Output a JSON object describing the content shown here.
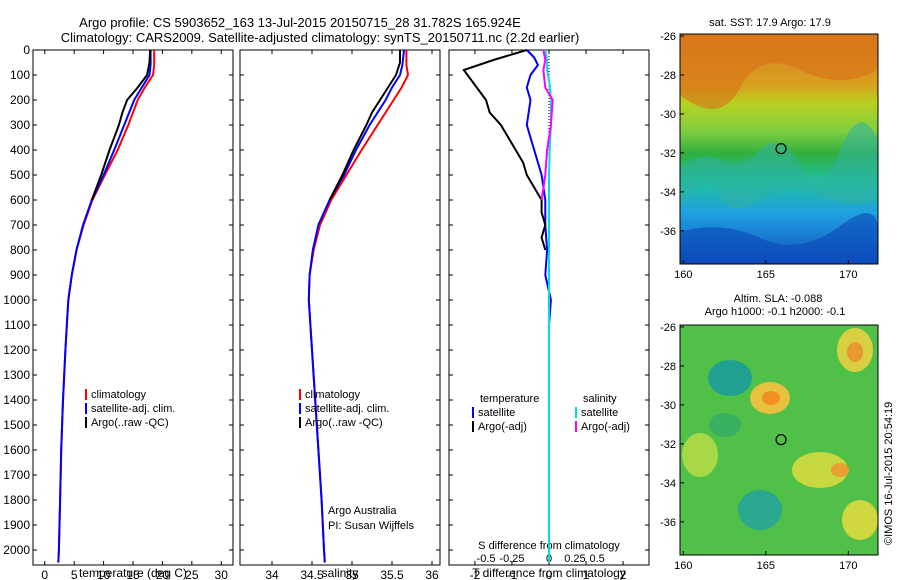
{
  "header": {
    "line1": "Argo profile: CS 5903652_163 13-Jul-2015 20150715_28 31.782S 165.924E",
    "line2": "Climatology: CARS2009. Satellite-adjusted climatology: synTS_20150711.nc (2.2d earlier)"
  },
  "colors": {
    "climatology": "#ff0000",
    "satellite": "#0000ff",
    "argo": "#000000",
    "sat_cyan": "#00e0e0",
    "argo_magenta": "#ff00ff"
  },
  "depth_axis": {
    "ticks": [
      "0",
      "100",
      "200",
      "300",
      "400",
      "500",
      "600",
      "700",
      "800",
      "900",
      "1000",
      "1100",
      "1200",
      "1300",
      "1400",
      "1500",
      "1600",
      "1700",
      "1800",
      "1900",
      "2000"
    ],
    "range": [
      0,
      2060
    ]
  },
  "chart_data": [
    {
      "type": "line",
      "name": "temperature-profile",
      "xlabel": "temperature (deg C)",
      "ylabel": "depth",
      "xlim": [
        -2,
        32
      ],
      "ylim": [
        2060,
        0
      ],
      "xticks": [
        "0",
        "5",
        "10",
        "15",
        "20",
        "25",
        "30"
      ],
      "legend": [
        "climatology",
        "satellite-adj. clim.",
        "Argo(..raw -QC)"
      ],
      "series": [
        {
          "name": "climatology",
          "color": "#ff0000",
          "depth": [
            0,
            60,
            100,
            150,
            200,
            300,
            400,
            500,
            600,
            700,
            800,
            900,
            1000,
            1200,
            1400,
            1600,
            1800,
            2000,
            2050
          ],
          "values": [
            18.6,
            18.6,
            18.4,
            17.0,
            15.8,
            14.2,
            12.4,
            10.2,
            8.1,
            6.6,
            5.4,
            4.6,
            4.0,
            3.5,
            3.1,
            2.8,
            2.6,
            2.4,
            2.3
          ]
        },
        {
          "name": "satellite-adj. clim.",
          "color": "#0000ff",
          "depth": [
            0,
            60,
            100,
            150,
            200,
            300,
            400,
            500,
            600,
            700,
            800,
            900,
            1000,
            1200,
            1400,
            1600,
            1800,
            2000,
            2050
          ],
          "values": [
            18.0,
            18.0,
            17.8,
            16.5,
            15.2,
            13.5,
            11.8,
            10.0,
            8.0,
            6.5,
            5.4,
            4.6,
            4.0,
            3.5,
            3.1,
            2.8,
            2.6,
            2.4,
            2.3
          ]
        },
        {
          "name": "Argo(..raw -QC)",
          "color": "#000000",
          "depth": [
            0,
            50,
            100,
            150,
            200,
            250,
            300,
            400,
            500,
            600
          ],
          "values": [
            17.9,
            17.8,
            17.4,
            15.8,
            14.0,
            13.2,
            12.6,
            11.0,
            9.6,
            8.0
          ]
        }
      ]
    },
    {
      "type": "line",
      "name": "salinity-profile",
      "xlabel": "salinity",
      "ylabel": "depth",
      "xlim": [
        33.6,
        36.1
      ],
      "ylim": [
        2060,
        0
      ],
      "xticks": [
        "34",
        "34.5",
        "35",
        "35.5",
        "36"
      ],
      "legend": [
        "climatology",
        "satellite-adj. clim.",
        "Argo(..raw -QC)"
      ],
      "annotations": [
        "Argo Australia",
        "PI: Susan Wijffels"
      ],
      "series": [
        {
          "name": "climatology",
          "color": "#ff0000",
          "depth": [
            0,
            60,
            100,
            150,
            200,
            300,
            400,
            500,
            600,
            700,
            800,
            900,
            1000,
            1200,
            1400,
            1600,
            1800,
            2000,
            2050
          ],
          "values": [
            35.68,
            35.68,
            35.7,
            35.62,
            35.52,
            35.32,
            35.12,
            34.93,
            34.74,
            34.6,
            34.52,
            34.47,
            34.46,
            34.5,
            34.54,
            34.58,
            34.62,
            34.65,
            34.66
          ]
        },
        {
          "name": "satellite-adj. clim.",
          "color": "#0000ff",
          "depth": [
            0,
            60,
            100,
            150,
            200,
            300,
            400,
            500,
            600,
            700,
            800,
            900,
            1000,
            1200,
            1400,
            1600,
            1800,
            2000,
            2050
          ],
          "values": [
            35.65,
            35.63,
            35.6,
            35.5,
            35.42,
            35.22,
            35.05,
            34.9,
            34.72,
            34.58,
            34.51,
            34.47,
            34.46,
            34.5,
            34.54,
            34.58,
            34.62,
            34.65,
            34.66
          ]
        },
        {
          "name": "Argo(..raw -QC)",
          "color": "#000000",
          "depth": [
            0,
            50,
            100,
            150,
            200,
            250,
            300,
            400,
            500,
            600
          ],
          "values": [
            35.6,
            35.6,
            35.55,
            35.45,
            35.35,
            35.25,
            35.18,
            35.02,
            34.88,
            34.72
          ]
        }
      ]
    },
    {
      "type": "line",
      "name": "difference-profile",
      "xlabel": "T difference from climatology",
      "xlabel2": "S difference from climatology",
      "ylabel": "depth",
      "xlim": [
        -2.7,
        2.7
      ],
      "ylim": [
        2060,
        0
      ],
      "xticks": [
        "-2",
        "-1",
        "0",
        "1",
        "2"
      ],
      "sticks": [
        "-0.5",
        "-0.25",
        "0",
        "0.25",
        "0.5"
      ],
      "legend_temperature_title": "temperature",
      "legend_salinity_title": "salinity",
      "legend": [
        "satellite",
        "Argo(-adj)",
        "satellite",
        "Argo(-adj)"
      ],
      "series": [
        {
          "name": "T satellite",
          "color": "#0000ff",
          "depth": [
            0,
            30,
            60,
            100,
            150,
            200,
            300,
            400,
            500,
            600,
            700,
            800,
            900,
            1000,
            1100,
            1200,
            1400,
            1600,
            1800,
            2000,
            2050
          ],
          "values": [
            -0.6,
            -0.4,
            -0.3,
            -0.5,
            -0.6,
            -0.5,
            -0.6,
            -0.4,
            -0.2,
            -0.1,
            -0.1,
            -0.05,
            -0.1,
            0.05,
            0.0,
            0.0,
            0.0,
            0.0,
            0.0,
            0.0,
            0.0
          ]
        },
        {
          "name": "T Argo(-adj)",
          "color": "#000000",
          "depth": [
            0,
            40,
            80,
            120,
            160,
            200,
            250,
            300,
            350,
            400,
            450,
            500,
            550,
            600,
            650,
            700,
            750,
            800
          ],
          "values": [
            -0.6,
            -1.5,
            -2.3,
            -2.1,
            -1.9,
            -1.7,
            -1.6,
            -1.3,
            -1.1,
            -0.9,
            -0.7,
            -0.6,
            -0.4,
            -0.2,
            -0.2,
            -0.1,
            -0.2,
            -0.1
          ]
        },
        {
          "name": "S satellite",
          "color": "#00e0e0",
          "depth": [
            0,
            40,
            80,
            150,
            200,
            300,
            400,
            500,
            700,
            1000,
            1500,
            2000,
            2050
          ],
          "values": [
            -0.1,
            -0.05,
            -0.05,
            0.03,
            0.05,
            0.05,
            0.02,
            0.0,
            0.0,
            0.0,
            0.0,
            0.0,
            0.0
          ]
        },
        {
          "name": "S Argo(-adj)",
          "color": "#ff00ff",
          "depth": [
            0,
            40,
            80,
            150,
            200,
            300,
            400,
            500,
            600
          ],
          "values": [
            -0.15,
            -0.1,
            -0.15,
            -0.1,
            0.1,
            0.05,
            -0.05,
            -0.1,
            -0.2
          ]
        }
      ]
    },
    {
      "type": "heatmap",
      "name": "sst-map",
      "title": "sat. SST: 17.9 Argo: 17.9",
      "xlim": [
        159.8,
        171.8
      ],
      "ylim": [
        -37.7,
        -25.9
      ],
      "xticks": [
        "160",
        "165",
        "170"
      ],
      "yticks": [
        "-26",
        "-28",
        "-30",
        "-32",
        "-34",
        "-36"
      ],
      "argo_marker": [
        165.924,
        -31.782
      ]
    },
    {
      "type": "heatmap",
      "name": "sla-map",
      "title": "Altim. SLA: -0.088",
      "subtitle": "Argo h1000: -0.1 h2000: -0.1",
      "xlim": [
        159.8,
        171.8
      ],
      "ylim": [
        -37.7,
        -25.9
      ],
      "xticks": [
        "160",
        "165",
        "170"
      ],
      "yticks": [
        "-26",
        "-28",
        "-30",
        "-32",
        "-34",
        "-36"
      ],
      "argo_marker": [
        165.924,
        -31.782
      ]
    }
  ],
  "footer_stamp": "©IMOS 16-Jul-2015 20:54:19"
}
